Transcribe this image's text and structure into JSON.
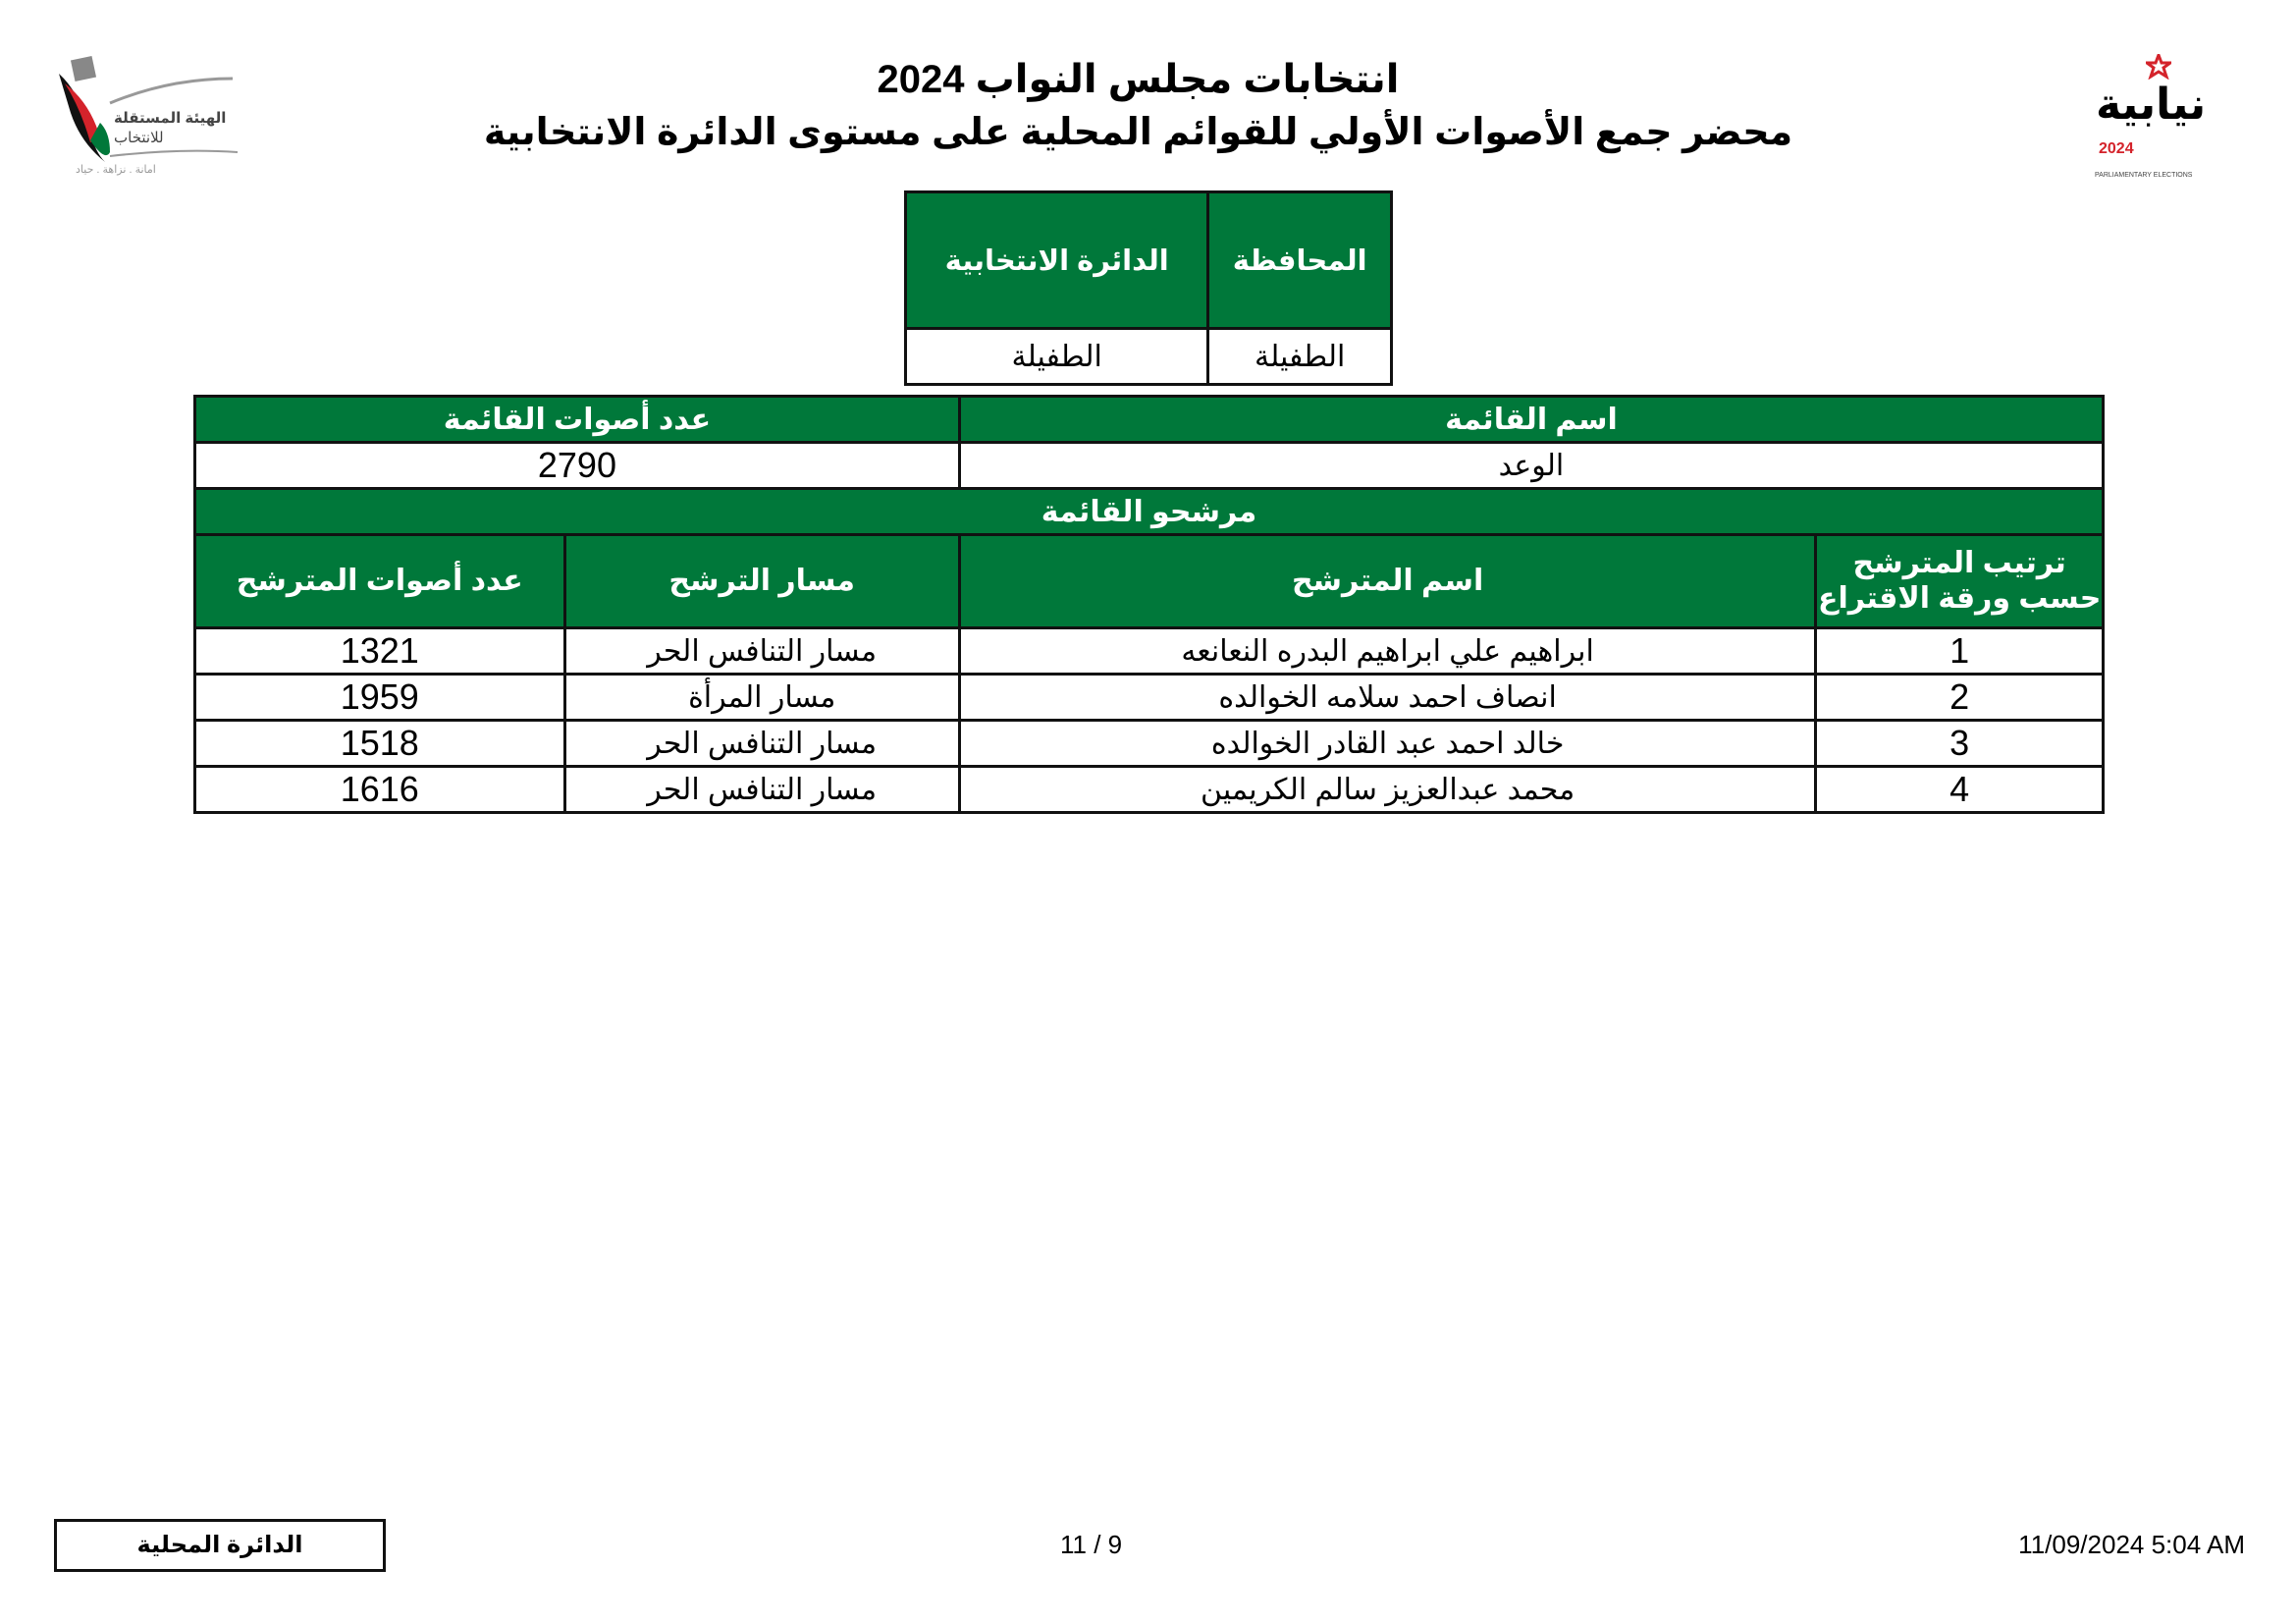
{
  "header": {
    "title": "انتخابات مجلس النواب 2024",
    "subtitle": "محضر جمع الأصوات الأولي للقوائم المحلية على مستوى الدائرة الانتخابية",
    "left_logo": {
      "text_line1": "الهيئة المستقلة",
      "text_line2": "للانتخاب",
      "tagline": "امانة . نزاهة . حياد"
    },
    "right_logo": {
      "text": "نيابية",
      "year": "2024",
      "caption": "PARLIAMENTARY ELECTIONS"
    }
  },
  "location_table": {
    "headers": [
      "المحافظة",
      "الدائرة الانتخابية"
    ],
    "values": [
      "الطفيلة",
      "الطفيلة"
    ]
  },
  "list_table": {
    "list_name_header": "اسم القائمة",
    "list_votes_header": "عدد أصوات القائمة",
    "list_name": "الوعد",
    "list_votes": "2790",
    "candidates_header": "مرشحو القائمة",
    "columns": [
      "ترتيب المترشح حسب ورقة الاقتراع",
      "اسم المترشح",
      "مسار الترشح",
      "عدد أصوات المترشح"
    ],
    "rows": [
      {
        "rank": "1",
        "name": "ابراهيم علي ابراهيم البدره النعانعه",
        "path": "مسار التنافس الحر",
        "votes": "1321"
      },
      {
        "rank": "2",
        "name": "انصاف احمد سلامه الخوالده",
        "path": "مسار المرأة",
        "votes": "1959"
      },
      {
        "rank": "3",
        "name": "خالد احمد عبد القادر الخوالده",
        "path": "مسار التنافس الحر",
        "votes": "1518"
      },
      {
        "rank": "4",
        "name": "محمد عبدالعزيز سالم الكريمين",
        "path": "مسار التنافس الحر",
        "votes": "1616"
      }
    ]
  },
  "footer": {
    "box_label": "الدائرة المحلية",
    "page": "11 / 9",
    "datetime": "11/09/2024 5:04 AM"
  },
  "colors": {
    "header_green": "#00783a",
    "logo_red": "#d4232b"
  }
}
